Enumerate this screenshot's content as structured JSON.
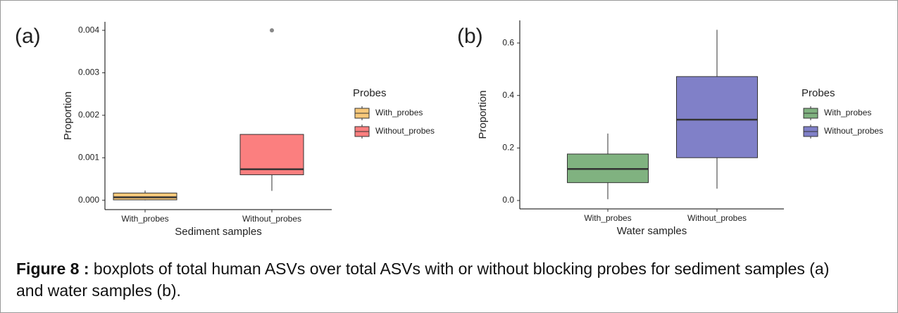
{
  "chart_data": [
    {
      "type": "box",
      "panel_label": "(a)",
      "ylabel": "Proportion",
      "xlabel": "Sediment samples",
      "legend_title": "Probes",
      "categories": [
        "With_probes",
        "Without_probes"
      ],
      "series": [
        {
          "name": "With_probes",
          "color": "#f8c87a",
          "min": 0,
          "q1": 1e-05,
          "median": 7e-05,
          "q3": 0.00017,
          "max": 0.00023,
          "outliers": []
        },
        {
          "name": "Without_probes",
          "color": "#fb7f7f",
          "min": 0.00022,
          "q1": 0.0006,
          "median": 0.00073,
          "q3": 0.00155,
          "max": 0.00155,
          "outliers": [
            0.004
          ]
        }
      ],
      "ylim": [
        -0.00022,
        0.0042
      ],
      "yticks": [
        {
          "value": 0,
          "label": "0.000"
        },
        0.001,
        0.002,
        0.003,
        0.004
      ]
    },
    {
      "type": "box",
      "panel_label": "(b)",
      "ylabel": "Proportion",
      "xlabel": "Water samples",
      "legend_title": "Probes",
      "categories": [
        "With_probes",
        "Without_probes"
      ],
      "series": [
        {
          "name": "With_probes",
          "color": "#80b280",
          "min": 0.005,
          "q1": 0.068,
          "median": 0.12,
          "q3": 0.177,
          "max": 0.255,
          "outliers": []
        },
        {
          "name": "Without_probes",
          "color": "#8080c8",
          "min": 0.045,
          "q1": 0.163,
          "median": 0.308,
          "q3": 0.472,
          "max": 0.65,
          "outliers": []
        }
      ],
      "ylim": [
        -0.032,
        0.686
      ],
      "yticks": [
        {
          "value": 0,
          "label": "0.0"
        },
        0.2,
        0.4,
        0.6
      ]
    }
  ],
  "caption": {
    "label": "Figure 8 :",
    "text": " boxplots of total human ASVs over total ASVs with or without blocking probes for sediment samples (a) and water samples (b)."
  }
}
